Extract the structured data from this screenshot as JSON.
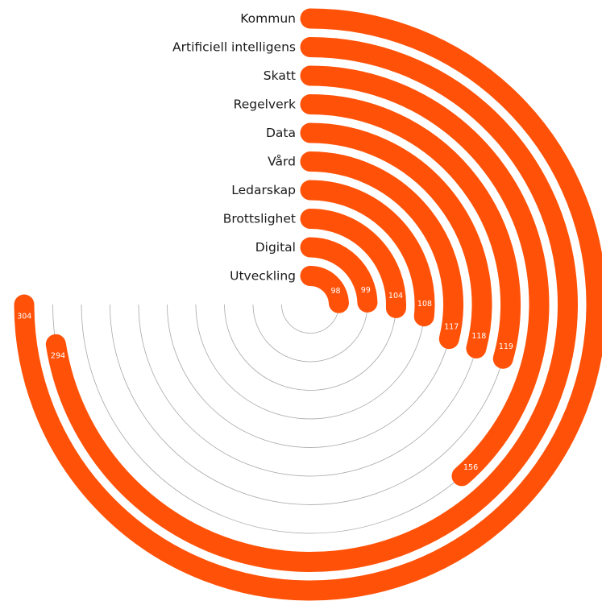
{
  "chart_data": {
    "type": "radial_bar",
    "title": "",
    "categories": [
      "Kommun",
      "Artificiell intelligens",
      "Skatt",
      "Regelverk",
      "Data",
      "Vård",
      "Ledarskap",
      "Brottslighet",
      "Digital",
      "Utveckling"
    ],
    "values": [
      304,
      294,
      156,
      119,
      118,
      117,
      108,
      104,
      99,
      98
    ],
    "bar_color": "#ff5208",
    "value_max": 304,
    "sweep_degrees_for_max": 270,
    "grid": true,
    "legend": "none"
  }
}
